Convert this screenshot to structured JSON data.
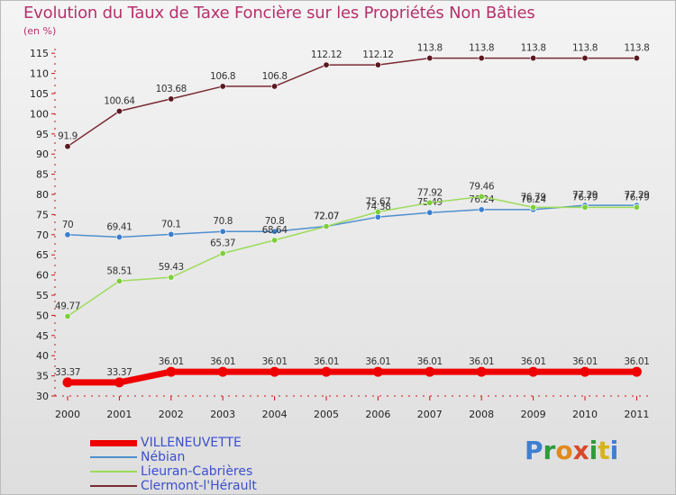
{
  "title": "Evolution du Taux de Taxe Foncière sur les Propriétés Non Bâties",
  "unit_label": "(en %)",
  "logo": {
    "letters": [
      "P",
      "r",
      "o",
      "x",
      "i",
      "t",
      "i"
    ],
    "colors": [
      "#3f7fd0",
      "#2e9b3a",
      "#e08a1e",
      "#d64a2a",
      "#2e9b3a",
      "#d6b41a",
      "#3f7fd0"
    ]
  },
  "chart_data": {
    "type": "line",
    "x": [
      "2000",
      "2001",
      "2002",
      "2003",
      "2004",
      "2005",
      "2006",
      "2007",
      "2008",
      "2009",
      "2010",
      "2011"
    ],
    "ylim": [
      30,
      115
    ],
    "yticks": [
      30,
      35,
      40,
      45,
      50,
      55,
      60,
      65,
      70,
      75,
      80,
      85,
      90,
      95,
      100,
      105,
      110,
      115
    ],
    "grid": false,
    "legend_position": "bottom-left",
    "series": [
      {
        "name": "Clermont-l'Hérault",
        "color": "#7a2a33",
        "marker_color": "#5c1820",
        "width": 1.5,
        "values": [
          91.9,
          100.64,
          103.68,
          106.8,
          106.8,
          112.12,
          112.12,
          113.8,
          113.8,
          113.8,
          113.8,
          113.8
        ],
        "labels": [
          "91.9",
          "100.64",
          "103.68",
          "106.8",
          "106.8",
          "112.12",
          "112.12",
          "113.8",
          "113.8",
          "113.8",
          "113.8",
          "113.8"
        ]
      },
      {
        "name": "Nébian",
        "color": "#4f8fcf",
        "marker_color": "#3a7fd0",
        "width": 1.5,
        "values": [
          70,
          69.41,
          70.1,
          70.8,
          70.8,
          72.07,
          74.38,
          75.49,
          76.24,
          76.24,
          77.29,
          77.29
        ],
        "labels": [
          "70",
          "69.41",
          "70.1",
          "70.8",
          "70.8",
          "72.07",
          "74.38",
          "75.49",
          "76.24",
          "76.24",
          "77.29",
          "77.29"
        ]
      },
      {
        "name": "Lieuran-Cabrières",
        "color": "#9ddb5a",
        "marker_color": "#7ccf3a",
        "width": 1.5,
        "values": [
          49.77,
          58.51,
          59.43,
          65.37,
          68.64,
          72.07,
          75.67,
          77.92,
          79.46,
          76.79,
          76.79,
          76.79
        ],
        "labels": [
          "49.77",
          "58.51",
          "59.43",
          "65.37",
          "68.64",
          "72.07",
          "75.67",
          "77.92",
          "79.46",
          "76.79",
          "76.79",
          "76.79"
        ]
      },
      {
        "name": "VILLENEUVETTE",
        "color": "#ee0000",
        "marker_color": "#ee0000",
        "width": 7,
        "values": [
          33.37,
          33.37,
          36.01,
          36.01,
          36.01,
          36.01,
          36.01,
          36.01,
          36.01,
          36.01,
          36.01,
          36.01
        ],
        "labels": [
          "33.37",
          "33.37",
          "36.01",
          "36.01",
          "36.01",
          "36.01",
          "36.01",
          "36.01",
          "36.01",
          "36.01",
          "36.01",
          "36.01"
        ]
      }
    ],
    "legend": [
      {
        "name": "VILLENEUVETTE",
        "color": "#ee0000",
        "width": 7
      },
      {
        "name": "Nébian",
        "color": "#4f8fcf",
        "width": 2
      },
      {
        "name": "Lieuran-Cabrières",
        "color": "#9ddb5a",
        "width": 2
      },
      {
        "name": "Clermont-l'Hérault",
        "color": "#7a2a33",
        "width": 2
      }
    ]
  }
}
